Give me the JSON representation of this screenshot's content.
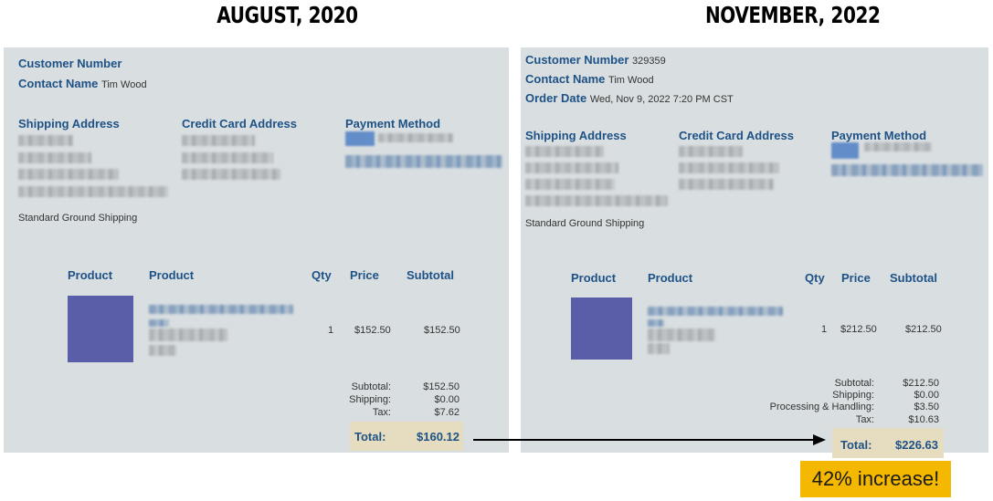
{
  "left": {
    "period": "AUGUST, 2020",
    "customer_number_label": "Customer Number",
    "contact_name_label": "Contact Name",
    "contact_name": "Tim Wood",
    "shipping_address_label": "Shipping Address",
    "credit_card_address_label": "Credit Card Address",
    "payment_method_label": "Payment Method",
    "shipping_method": "Standard Ground Shipping",
    "columns": {
      "product_image": "Product",
      "product": "Product",
      "qty": "Qty",
      "price": "Price",
      "subtotal": "Subtotal"
    },
    "item": {
      "qty": "1",
      "price": "$152.50",
      "subtotal": "$152.50"
    },
    "summary": {
      "subtotal_label": "Subtotal:",
      "subtotal": "$152.50",
      "shipping_label": "Shipping:",
      "shipping": "$0.00",
      "tax_label": "Tax:",
      "tax": "$7.62",
      "total_label": "Total:",
      "total": "$160.12"
    }
  },
  "right": {
    "period": "NOVEMBER, 2022",
    "customer_number_label": "Customer Number",
    "customer_number": "329359",
    "contact_name_label": "Contact Name",
    "contact_name": "Tim Wood",
    "order_date_label": "Order Date",
    "order_date": "Wed, Nov 9, 2022 7:20 PM CST",
    "shipping_address_label": "Shipping Address",
    "credit_card_address_label": "Credit Card Address",
    "payment_method_label": "Payment Method",
    "shipping_method": "Standard Ground Shipping",
    "columns": {
      "product_image": "Product",
      "product": "Product",
      "qty": "Qty",
      "price": "Price",
      "subtotal": "Subtotal"
    },
    "item": {
      "qty": "1",
      "price": "$212.50",
      "subtotal": "$212.50"
    },
    "summary": {
      "subtotal_label": "Subtotal:",
      "subtotal": "$212.50",
      "shipping_label": "Shipping:",
      "shipping": "$0.00",
      "processing_label": "Processing & Handling:",
      "processing": "$3.50",
      "tax_label": "Tax:",
      "tax": "$10.63",
      "total_label": "Total:",
      "total": "$226.63"
    }
  },
  "annotation": {
    "increase": "42% increase!"
  },
  "colors": {
    "panel_bg": "#d9dee1",
    "label_blue": "#1e5286",
    "thumb": "#5a5ea8",
    "total_bg": "#e6dcc0",
    "badge_bg": "#f5b800"
  },
  "icons": {
    "connector": "arrow-right-icon"
  }
}
